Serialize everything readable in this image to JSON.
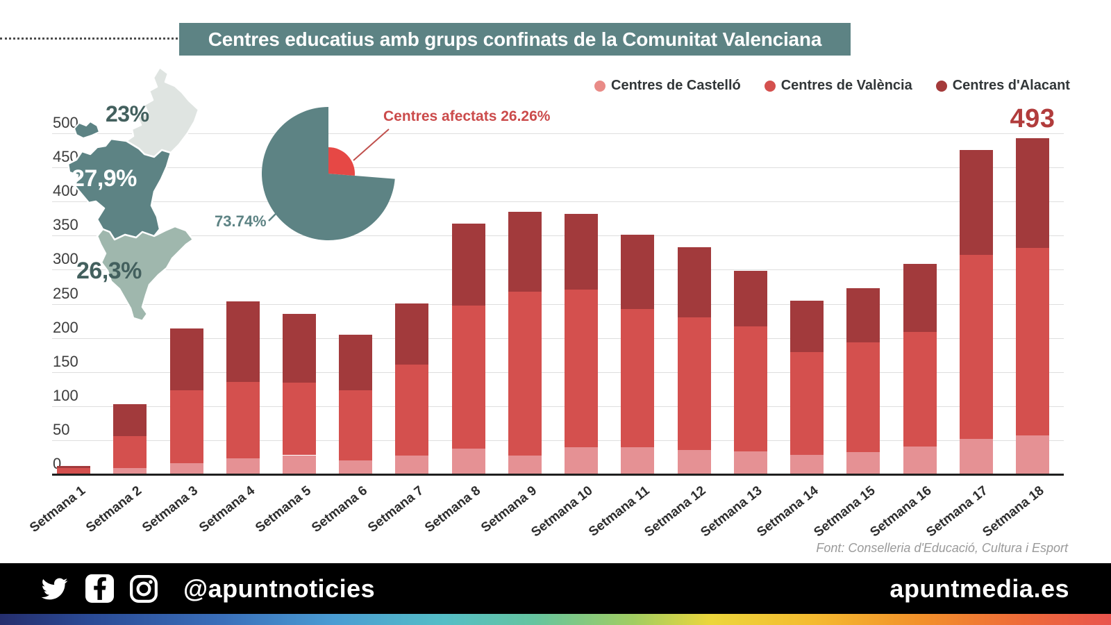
{
  "title": "Centres educatius amb grups confinats de la Comunitat Valenciana",
  "legend": {
    "items": [
      {
        "label": "Centres de Castelló",
        "color": "#e98b87"
      },
      {
        "label": "Centres de València",
        "color": "#d4504e"
      },
      {
        "label": "Centres d'Alacant",
        "color": "#a43a3a"
      }
    ]
  },
  "map": {
    "castello_pct": "23%",
    "valencia_pct": "27,9%",
    "alacant_pct": "26,3%",
    "colors": {
      "castello": "#dfe4e1",
      "valencia": "#5d8384",
      "alacant": "#9fb7ad"
    },
    "label_colors": {
      "castello": "#43605e",
      "valencia": "#ffffff",
      "alacant": "#43605e"
    }
  },
  "pie": {
    "affected_label": "Centres afectats 26.26%",
    "affected_pct": 26.26,
    "rest_label": "73.74%",
    "rest_pct": 73.74,
    "colors": {
      "affected": "#e64845",
      "rest": "#5d8384"
    },
    "label_colors": {
      "affected": "#cb4b4b",
      "rest": "#5d8384"
    }
  },
  "peak_annotation": "493",
  "source": "Font: Conselleria d'Educació, Cultura i Esport",
  "footer": {
    "handle": "@apuntnoticies",
    "site": "apuntmedia.es",
    "icons": [
      "twitter-icon",
      "facebook-icon",
      "instagram-icon"
    ]
  },
  "chart_data": {
    "type": "bar",
    "stacked": true,
    "title": "Centres educatius amb grups confinats de la Comunitat Valenciana",
    "categories": [
      "Setmana 1",
      "Setmana 2",
      "Setmana 3",
      "Setmana 4",
      "Setmana 5",
      "Setmana 6",
      "Setmana 7",
      "Setmana 8",
      "Setmana 9",
      "Setmana 10",
      "Setmana 11",
      "Setmana 12",
      "Setmana 13",
      "Setmana 14",
      "Setmana 15",
      "Setmana 16",
      "Setmana 17",
      "Setmana 18"
    ],
    "series": [
      {
        "name": "Centres de Castelló",
        "color": "#e59194",
        "values": [
          1,
          9,
          16,
          23,
          28,
          20,
          27,
          38,
          27,
          40,
          40,
          36,
          34,
          29,
          33,
          41,
          52,
          57
        ]
      },
      {
        "name": "Centres de València",
        "color": "#d4504e",
        "values": [
          8,
          47,
          107,
          112,
          106,
          103,
          134,
          209,
          241,
          231,
          202,
          194,
          183,
          150,
          160,
          168,
          270,
          275
        ]
      },
      {
        "name": "Centres d'Alacant",
        "color": "#a23a3c",
        "values": [
          3,
          47,
          91,
          119,
          101,
          82,
          90,
          121,
          117,
          111,
          109,
          103,
          81,
          76,
          80,
          100,
          154,
          161
        ]
      }
    ],
    "totals": [
      12,
      103,
      214,
      254,
      235,
      205,
      251,
      368,
      385,
      382,
      351,
      333,
      298,
      255,
      273,
      309,
      476,
      493
    ],
    "y_ticks": [
      0,
      50,
      100,
      150,
      200,
      250,
      300,
      350,
      400,
      450,
      500
    ],
    "ylim": [
      0,
      500
    ],
    "grid": true,
    "legend_position": "top-right",
    "annotations": [
      {
        "category": "Setmana 18",
        "text": "493"
      }
    ]
  }
}
